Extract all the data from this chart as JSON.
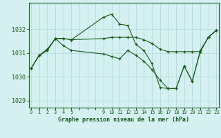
{
  "title": "Graphe pression niveau de la mer (hPa)",
  "bg_color": "#d4f0f0",
  "grid_color": "#b8dede",
  "line_color": "#1a5c1a",
  "ylim": [
    1028.7,
    1033.1
  ],
  "yticks": [
    1029,
    1030,
    1031,
    1032
  ],
  "s1_x": [
    0,
    1,
    2,
    3,
    4,
    5,
    9,
    10,
    11,
    12,
    13,
    14,
    15,
    16,
    17,
    18,
    19,
    20,
    21,
    22,
    23
  ],
  "s1_y": [
    1030.35,
    1030.9,
    1031.1,
    1031.6,
    1031.6,
    1031.55,
    1032.5,
    1032.62,
    1032.2,
    1032.15,
    1031.35,
    1031.1,
    1030.55,
    1029.55,
    1029.5,
    1029.5,
    1030.45,
    1029.8,
    1031.1,
    1031.65,
    1031.95
  ],
  "s2_x": [
    0,
    1,
    2,
    3,
    4,
    5,
    9,
    10,
    11,
    12,
    13,
    14,
    15,
    16,
    17,
    18,
    19,
    20,
    21,
    22,
    23
  ],
  "s2_y": [
    1030.35,
    1030.9,
    1031.15,
    1031.6,
    1031.6,
    1031.55,
    1031.6,
    1031.65,
    1031.65,
    1031.65,
    1031.65,
    1031.55,
    1031.4,
    1031.15,
    1031.05,
    1031.05,
    1031.05,
    1031.05,
    1031.05,
    1031.65,
    1031.95
  ],
  "s3_x": [
    0,
    1,
    2,
    3,
    4,
    5,
    9,
    10,
    11,
    12,
    13,
    14,
    15,
    16,
    17,
    18,
    19,
    20,
    21,
    22,
    23
  ],
  "s3_y": [
    1030.35,
    1030.9,
    1031.1,
    1031.6,
    1031.3,
    1031.1,
    1030.95,
    1030.85,
    1030.75,
    1031.1,
    1030.9,
    1030.65,
    1030.3,
    1029.85,
    1029.5,
    1029.5,
    1030.45,
    1029.8,
    1031.05,
    1031.65,
    1031.95
  ],
  "xlim": [
    -0.3,
    23.3
  ]
}
